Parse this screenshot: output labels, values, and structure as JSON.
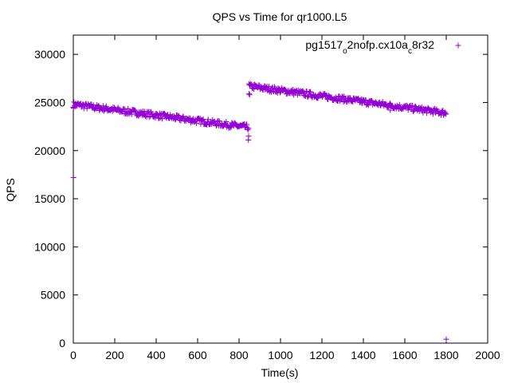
{
  "chart_data": {
    "type": "scatter",
    "title": "QPS vs Time for qr1000.L5",
    "xlabel": "Time(s)",
    "ylabel": "QPS",
    "xlim": [
      0,
      2000
    ],
    "ylim": [
      0,
      32000
    ],
    "x_ticks": [
      0,
      200,
      400,
      600,
      800,
      1000,
      1200,
      1400,
      1600,
      1800,
      2000
    ],
    "y_ticks": [
      0,
      5000,
      10000,
      15000,
      20000,
      25000,
      30000
    ],
    "grid": false,
    "legend_position": "top-right",
    "marker": "plus",
    "series": [
      {
        "name": "pg1517_o2nofp.cx10a_c8r32",
        "legend_parts": [
          {
            "text": "pg1517",
            "sub": false
          },
          {
            "text": "o",
            "sub": true
          },
          {
            "text": "2nofp.cx10a",
            "sub": false
          },
          {
            "text": "c",
            "sub": true
          },
          {
            "text": "8r32",
            "sub": false
          }
        ],
        "color": "#9400d3",
        "segments": [
          {
            "x_start": 0,
            "x_end": 848,
            "x_step": 3,
            "y_start": 24800,
            "y_end": 22400,
            "spread": 300
          },
          {
            "x_start": 848,
            "x_end": 1800,
            "x_step": 3,
            "y_start": 26700,
            "y_end": 23900,
            "spread": 300
          }
        ],
        "points": [
          [
            1,
            17200
          ],
          [
            1,
            24400
          ],
          [
            845,
            21100
          ],
          [
            846,
            21500
          ],
          [
            848,
            25900
          ],
          [
            851,
            25800
          ],
          [
            1530,
            24200
          ],
          [
            1800,
            400
          ]
        ]
      }
    ]
  }
}
